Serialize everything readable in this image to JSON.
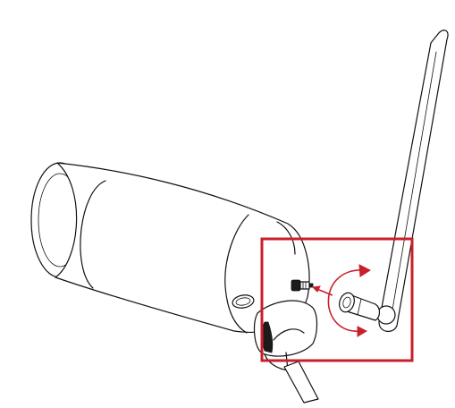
{
  "diagram": {
    "accent_color": "#c8202a",
    "ink_color": "#111111",
    "background_color": "#ffffff",
    "subjects": [
      "camera-body",
      "antenna-connector",
      "antenna",
      "rotation-arrow",
      "insert-arrow",
      "highlight-frame"
    ]
  }
}
